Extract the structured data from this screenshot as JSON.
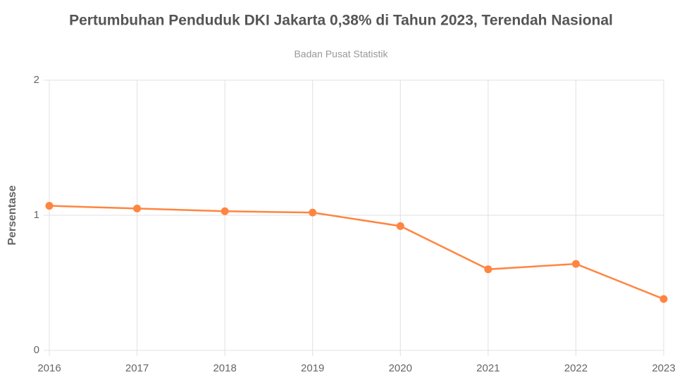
{
  "chart_data": {
    "type": "line",
    "title": "Pertumbuhan Penduduk DKI Jakarta 0,38% di Tahun 2023, Terendah Nasional",
    "subtitle": "Badan Pusat Statistik",
    "y_label": "Persentase",
    "x": [
      2016,
      2017,
      2018,
      2019,
      2020,
      2021,
      2022,
      2023
    ],
    "series": [
      {
        "name": "Persentase",
        "color": "#ff8540",
        "values": [
          1.07,
          1.05,
          1.03,
          1.02,
          0.92,
          0.6,
          0.64,
          0.38
        ]
      }
    ],
    "xlim": [
      2016,
      2023
    ],
    "xticks": [
      2016,
      2017,
      2018,
      2019,
      2020,
      2021,
      2022,
      2023
    ],
    "ylim": [
      0,
      2
    ],
    "yticks": [
      0,
      1,
      2
    ],
    "grid": true
  }
}
